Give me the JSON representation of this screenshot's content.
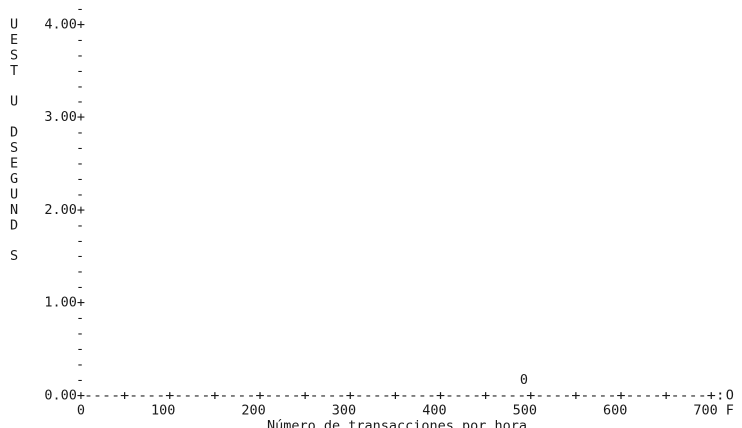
{
  "chart_data": {
    "type": "scatter",
    "ylabel_letters": [
      "U",
      "E",
      "S",
      "T",
      "",
      "U",
      "",
      "D",
      "S",
      "E",
      "G",
      "U",
      "N",
      "D",
      "",
      "S"
    ],
    "xlabel": "Número de transacciones por hora",
    "ytick_labels": [
      "0.00+",
      "1.00+",
      "2.00+",
      "3.00+",
      "4.00+"
    ],
    "y_ticks": [
      0,
      1,
      2,
      3,
      4
    ],
    "y_minor_mark": "-",
    "ylim": [
      0,
      4.4
    ],
    "axis_line": "----+----+----+----+----+----+----+----+----+----+----+----+----+----+:",
    "x_ticks": [
      0,
      100,
      200,
      300,
      400,
      500,
      600,
      700
    ],
    "xtick_labels": [
      "0",
      "100",
      "200",
      "300",
      "400",
      "500",
      "600",
      "700"
    ],
    "xlim": [
      0,
      700
    ],
    "right_margin_labels": [
      "O",
      "F"
    ],
    "point_symbol": "0",
    "points": [
      {
        "x": 490,
        "y": 0.0
      }
    ]
  }
}
